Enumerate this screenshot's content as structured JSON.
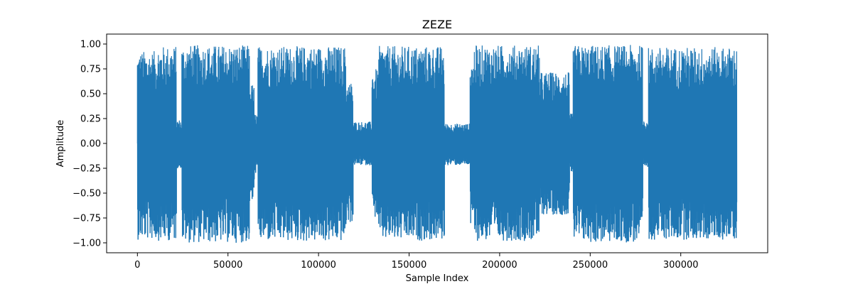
{
  "chart_data": {
    "type": "line",
    "title": "ZEZE",
    "xlabel": "Sample Index",
    "ylabel": "Amplitude",
    "xlim": [
      -17000,
      348000
    ],
    "ylim": [
      -1.1,
      1.1
    ],
    "xticks": [
      0,
      50000,
      100000,
      150000,
      200000,
      250000,
      300000
    ],
    "xtick_labels": [
      "0",
      "50000",
      "100000",
      "150000",
      "200000",
      "250000",
      "300000"
    ],
    "yticks": [
      -1.0,
      -0.75,
      -0.5,
      -0.25,
      0.0,
      0.25,
      0.5,
      0.75,
      1.0
    ],
    "ytick_labels": [
      "−1.00",
      "−0.75",
      "−0.50",
      "−0.25",
      "0.00",
      "0.25",
      "0.50",
      "0.75",
      "1.00"
    ],
    "grid": false,
    "series": [
      {
        "color": "#1f77b4",
        "x_range": [
          0,
          331000
        ],
        "envelope_segments": [
          {
            "x0": 0,
            "x1": 11500,
            "max": 0.93,
            "min": -0.97
          },
          {
            "x0": 11500,
            "x1": 21500,
            "max": 0.98,
            "min": -0.98
          },
          {
            "x0": 21500,
            "x1": 24500,
            "max": 0.24,
            "min": -0.25
          },
          {
            "x0": 24500,
            "x1": 62000,
            "max": 0.99,
            "min": -1.0
          },
          {
            "x0": 62000,
            "x1": 64500,
            "max": 0.6,
            "min": -0.6
          },
          {
            "x0": 64500,
            "x1": 66500,
            "max": 0.3,
            "min": -0.3
          },
          {
            "x0": 66500,
            "x1": 115000,
            "max": 0.98,
            "min": -0.99
          },
          {
            "x0": 115000,
            "x1": 119000,
            "max": 0.62,
            "min": -0.8
          },
          {
            "x0": 119000,
            "x1": 129500,
            "max": 0.22,
            "min": -0.22
          },
          {
            "x0": 129500,
            "x1": 133000,
            "max": 0.75,
            "min": -0.75
          },
          {
            "x0": 133000,
            "x1": 169500,
            "max": 0.98,
            "min": -0.98
          },
          {
            "x0": 169500,
            "x1": 183500,
            "max": 0.2,
            "min": -0.22
          },
          {
            "x0": 183500,
            "x1": 186000,
            "max": 0.85,
            "min": -0.85
          },
          {
            "x0": 186000,
            "x1": 222000,
            "max": 0.99,
            "min": -0.98
          },
          {
            "x0": 222000,
            "x1": 238500,
            "max": 0.72,
            "min": -0.72
          },
          {
            "x0": 238500,
            "x1": 240500,
            "max": 0.3,
            "min": -0.3
          },
          {
            "x0": 240500,
            "x1": 279000,
            "max": 0.99,
            "min": -1.0
          },
          {
            "x0": 279000,
            "x1": 282000,
            "max": 0.25,
            "min": -0.25
          },
          {
            "x0": 282000,
            "x1": 331000,
            "max": 0.97,
            "min": -0.97
          }
        ]
      }
    ]
  }
}
